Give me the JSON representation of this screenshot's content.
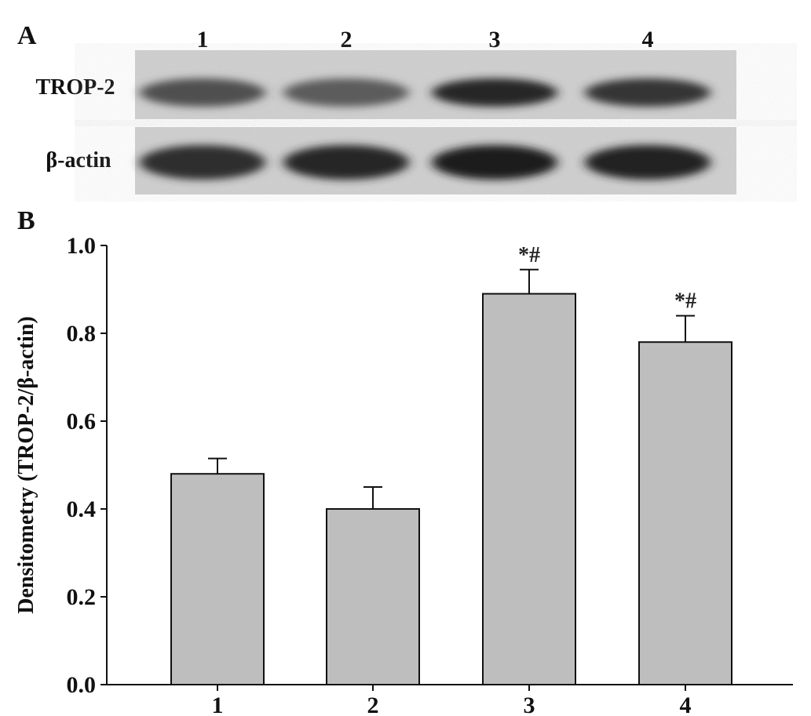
{
  "panels": {
    "a_label": "A",
    "b_label": "B"
  },
  "blot": {
    "lanes": [
      "1",
      "2",
      "3",
      "4"
    ],
    "rows": [
      {
        "label": "TROP-2",
        "intensity": [
          0.55,
          0.45,
          0.85,
          0.75
        ]
      },
      {
        "label": "β-actin",
        "intensity": [
          0.8,
          0.85,
          0.95,
          0.9
        ]
      }
    ]
  },
  "chart_data": {
    "type": "bar",
    "categories": [
      "1",
      "2",
      "3",
      "4"
    ],
    "values": [
      0.48,
      0.4,
      0.89,
      0.78
    ],
    "errors": [
      0.035,
      0.05,
      0.055,
      0.06
    ],
    "annotations": [
      "",
      "",
      "*#",
      "*#"
    ],
    "title": "",
    "xlabel": "",
    "ylabel": "Densitometry (TROP-2/β-actin)",
    "ylim": [
      0,
      1.0
    ],
    "yticks": [
      "0.0",
      "0.2",
      "0.4",
      "0.6",
      "0.8",
      "1.0"
    ],
    "grid": false,
    "bar_color": "#bebebe"
  }
}
